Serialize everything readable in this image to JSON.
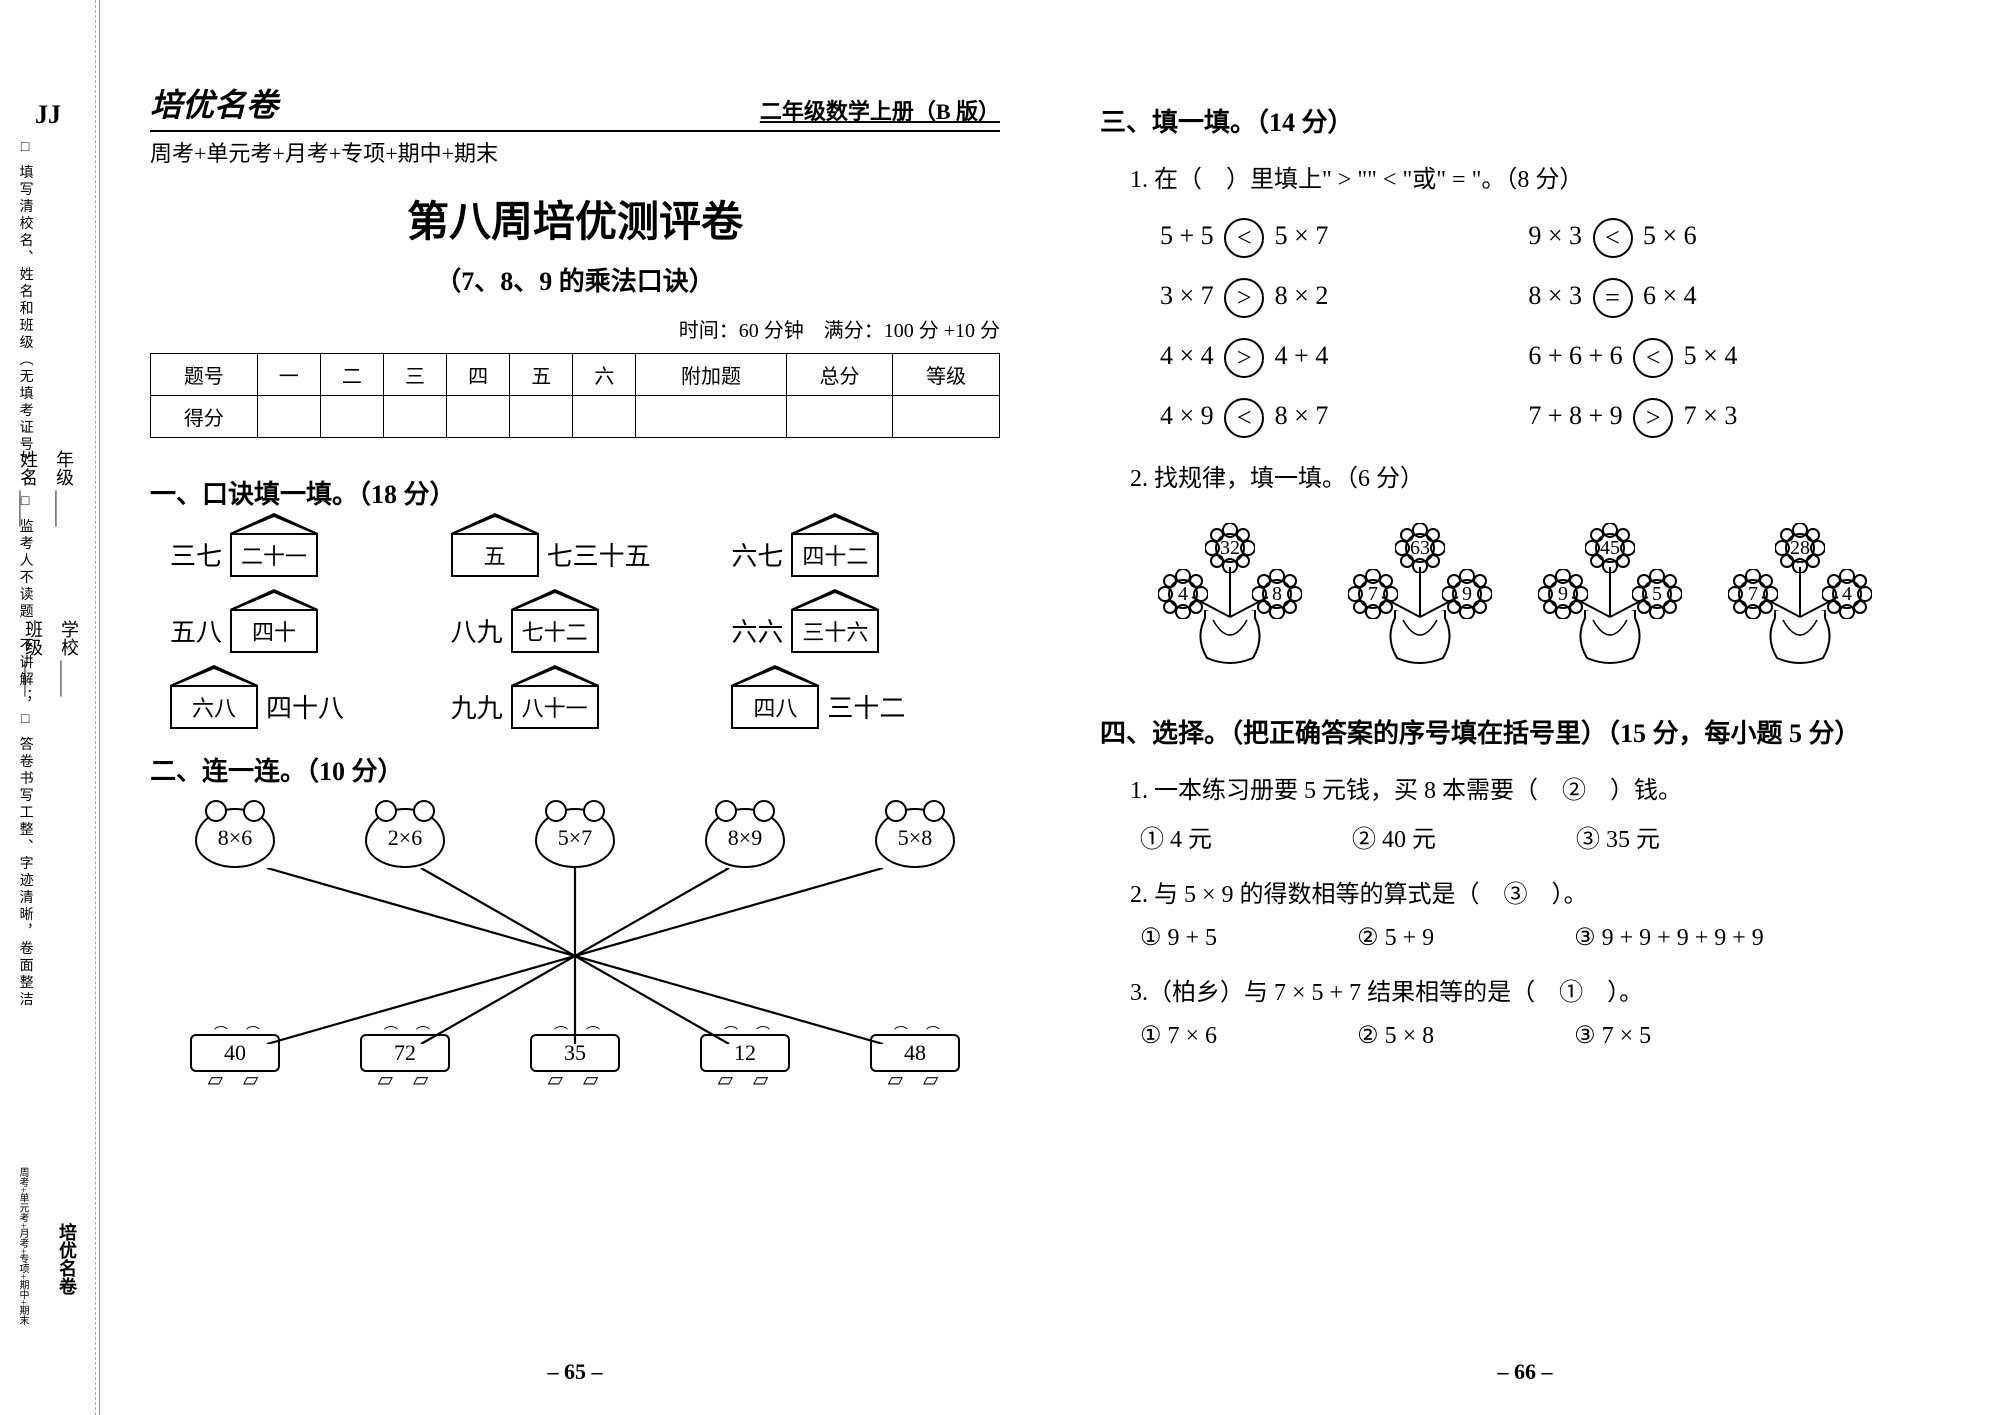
{
  "sidebar": {
    "jj": "JJ",
    "rules": "□ 填写清校名、姓名和班级（无填考证号）；\n□ 监考人不读题、不讲解；\n□ 答卷书写工整、字迹清晰，卷面整洁",
    "grade_label": "年级 ____",
    "name_label": "姓名 ____",
    "school_label": "学校 ____",
    "class_label": "班级 ____",
    "logo": "培优名卷",
    "logo_sub": "周考+单元考+月考+专项+期中+期末"
  },
  "left": {
    "logo": "培优名卷",
    "book_title": "二年级数学上册（B 版）",
    "subhead": "周考+单元考+月考+专项+期中+期末",
    "big_title": "第八周培优测评卷",
    "subtitle": "（7、8、9 的乘法口诀）",
    "time_score": "时间：60 分钟　满分：100 分 +10 分",
    "score_headers": [
      "题号",
      "一",
      "二",
      "三",
      "四",
      "五",
      "六",
      "附加题",
      "总分",
      "等级"
    ],
    "score_row2": "得分",
    "sec1_title": "一、口诀填一填。（18 分）",
    "koujue": [
      {
        "pre": "三七",
        "ans": "二十一",
        "post": ""
      },
      {
        "pre": "",
        "ans": "五",
        "post": "七三十五"
      },
      {
        "pre": "六七",
        "ans": "四十二",
        "post": ""
      },
      {
        "pre": "五八",
        "ans": "四十",
        "post": ""
      },
      {
        "pre": "八九",
        "ans": "七十二",
        "post": ""
      },
      {
        "pre": "六六",
        "ans": "三十六",
        "post": "",
        "swap": true
      },
      {
        "pre": "",
        "ans": "六八",
        "post": "四十八",
        "swap": true
      },
      {
        "pre": "九九",
        "ans": "八十一",
        "post": ""
      },
      {
        "pre": "",
        "ans": "四八",
        "post": "三十二",
        "swap": true
      }
    ],
    "sec2_title": "二、连一连。（10 分）",
    "q2_top": [
      "8×6",
      "2×6",
      "5×7",
      "8×9",
      "5×8"
    ],
    "q2_bot": [
      "40",
      "72",
      "35",
      "12",
      "48"
    ],
    "pagenum": "– 65 –"
  },
  "right": {
    "sec3_title": "三、填一填。（14 分）",
    "q3_1": "1. 在（　）里填上\" > \"\" < \"或\" = \"。（8 分）",
    "compare": [
      {
        "l": "5 + 5",
        "op": "<",
        "r": "5 × 7",
        "l2": "9 × 3",
        "op2": "<",
        "r2": "5 × 6"
      },
      {
        "l": "3 × 7",
        "op": ">",
        "r": "8 × 2",
        "l2": "8 × 3",
        "op2": "=",
        "r2": "6 × 4"
      },
      {
        "l": "4 × 4",
        "op": ">",
        "r": "4 + 4",
        "l2": "6 + 6 + 6",
        "op2": "<",
        "r2": "5 × 4"
      },
      {
        "l": "4 × 9",
        "op": "<",
        "r": "8 × 7",
        "l2": "7 + 8 + 9",
        "op2": ">",
        "r2": "7 × 3"
      }
    ],
    "q3_2": "2. 找规律，填一填。（6 分）",
    "flowers": [
      {
        "t": "32",
        "l": "4",
        "r": "8"
      },
      {
        "t": "63",
        "l": "7",
        "r": "9"
      },
      {
        "t": "45",
        "l": "9",
        "r": "5"
      },
      {
        "t": "28",
        "l": "7",
        "r": "4"
      }
    ],
    "sec4_title": "四、选择。（把正确答案的序号填在括号里）（15 分，每小题 5 分）",
    "q4": [
      {
        "q": "1. 一本练习册要 5 元钱，买 8 本需要（　②　）钱。",
        "opts": [
          "① 4 元",
          "② 40 元",
          "③ 35 元"
        ]
      },
      {
        "q": "2. 与 5 × 9 的得数相等的算式是（　③　）。",
        "opts": [
          "① 9 + 5",
          "② 5 + 9",
          "③ 9 + 9 + 9 + 9 + 9"
        ]
      },
      {
        "q": "3.（柏乡）与 7 × 5 + 7 结果相等的是（　①　）。",
        "opts": [
          "① 7 × 6",
          "② 5 × 8",
          "③ 7 × 5"
        ]
      }
    ],
    "pagenum": "– 66 –"
  }
}
